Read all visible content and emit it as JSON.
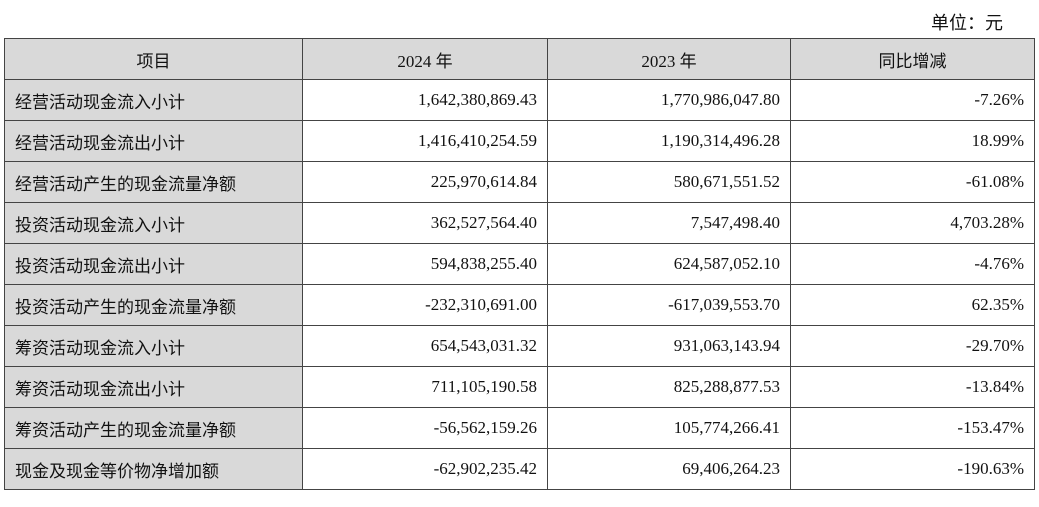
{
  "header": {
    "unit": "单位：元"
  },
  "table": {
    "columns": [
      "项目",
      "2024 年",
      "2023 年",
      "同比增减"
    ],
    "rows": [
      [
        "经营活动现金流入小计",
        "1,642,380,869.43",
        "1,770,986,047.80",
        "-7.26%"
      ],
      [
        "经营活动现金流出小计",
        "1,416,410,254.59",
        "1,190,314,496.28",
        "18.99%"
      ],
      [
        "经营活动产生的现金流量净额",
        "225,970,614.84",
        "580,671,551.52",
        "-61.08%"
      ],
      [
        "投资活动现金流入小计",
        "362,527,564.40",
        "7,547,498.40",
        "4,703.28%"
      ],
      [
        "投资活动现金流出小计",
        "594,838,255.40",
        "624,587,052.10",
        "-4.76%"
      ],
      [
        "投资活动产生的现金流量净额",
        "-232,310,691.00",
        "-617,039,553.70",
        "62.35%"
      ],
      [
        "筹资活动现金流入小计",
        "654,543,031.32",
        "931,063,143.94",
        "-29.70%"
      ],
      [
        "筹资活动现金流出小计",
        "711,105,190.58",
        "825,288,877.53",
        "-13.84%"
      ],
      [
        "筹资活动产生的现金流量净额",
        "-56,562,159.26",
        "105,774,266.41",
        "-153.47%"
      ],
      [
        "现金及现金等价物净增加额",
        "-62,902,235.42",
        "69,406,264.23",
        "-190.63%"
      ]
    ]
  }
}
